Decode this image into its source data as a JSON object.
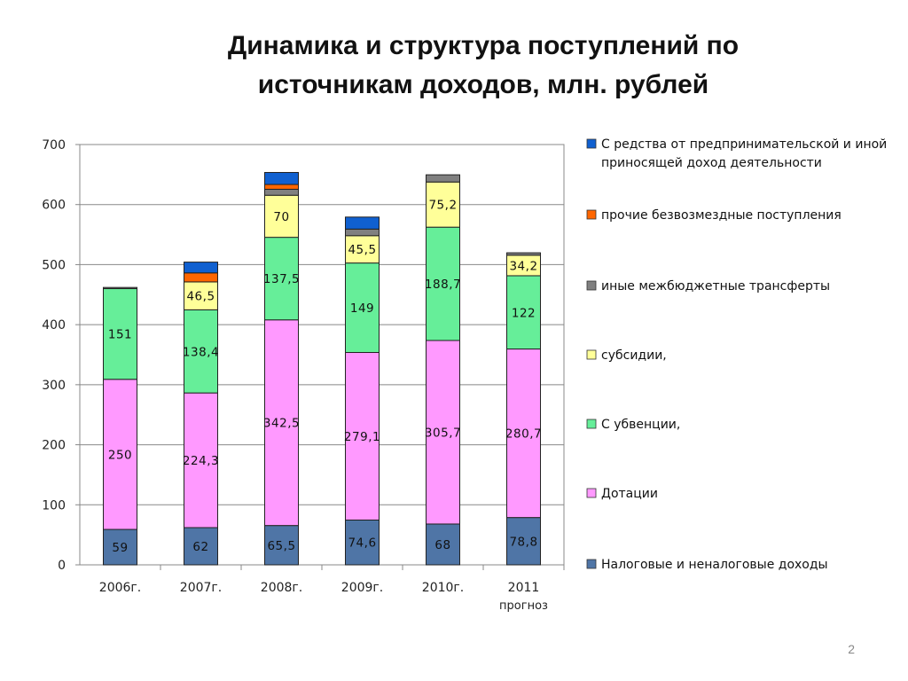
{
  "slide": {
    "title_line1": "Динамика и структура поступлений по",
    "title_line2": "источникам доходов, млн. рублей",
    "page_number": "2"
  },
  "chart_data": {
    "type": "bar",
    "stacked": true,
    "categories": [
      "2006г.",
      "2007г.",
      "2008г.",
      "2009г.",
      "2010г.",
      "2011\nпрогноз"
    ],
    "ylim": [
      0,
      700
    ],
    "yticks": [
      0,
      100,
      200,
      300,
      400,
      500,
      600,
      700
    ],
    "grid": true,
    "legend_position": "right",
    "series": [
      {
        "name": "Налоговые и неналоговые доходы",
        "color": "#4F75A6",
        "values": [
          59,
          62,
          65.5,
          74.6,
          68,
          78.8
        ],
        "labels": [
          "59",
          "62",
          "65,5",
          "74,6",
          "68",
          "78,8"
        ]
      },
      {
        "name": "Дотации",
        "color": "#FF99FF",
        "values": [
          250,
          224.3,
          342.5,
          279.1,
          305.7,
          280.7
        ],
        "labels": [
          "250",
          "224,3",
          "342,5",
          "279,1",
          "305,7",
          "280,7"
        ]
      },
      {
        "name": "С убвенции,",
        "color": "#66EE99",
        "values": [
          151,
          138.4,
          137.5,
          149,
          188.7,
          122
        ],
        "labels": [
          "151",
          "138,4",
          "137,5",
          "149",
          "188,7",
          "122"
        ]
      },
      {
        "name": "субсидии,",
        "color": "#FFFF99",
        "values": [
          0,
          46.5,
          70,
          45.5,
          75.2,
          34.2
        ],
        "labels": [
          "",
          "46,5",
          "70",
          "45,5",
          "75,2",
          "34,2"
        ]
      },
      {
        "name": "иные межбюджетные трансферты",
        "color": "#808080",
        "values": [
          2,
          0,
          10,
          11,
          12,
          4
        ],
        "labels": [
          "",
          "",
          "",
          "",
          "",
          ""
        ]
      },
      {
        "name": "прочие безвозмездные поступления",
        "color": "#FF6600",
        "values": [
          0,
          15,
          8,
          0,
          0,
          0
        ],
        "labels": [
          "",
          "",
          "",
          "",
          "",
          ""
        ]
      },
      {
        "name": "С редства от предпринимательской и иной приносящей доход деятельности",
        "color": "#1060D0",
        "values": [
          0,
          18,
          20,
          20,
          0,
          0
        ],
        "labels": [
          "",
          "",
          "",
          "",
          "",
          ""
        ]
      }
    ]
  }
}
